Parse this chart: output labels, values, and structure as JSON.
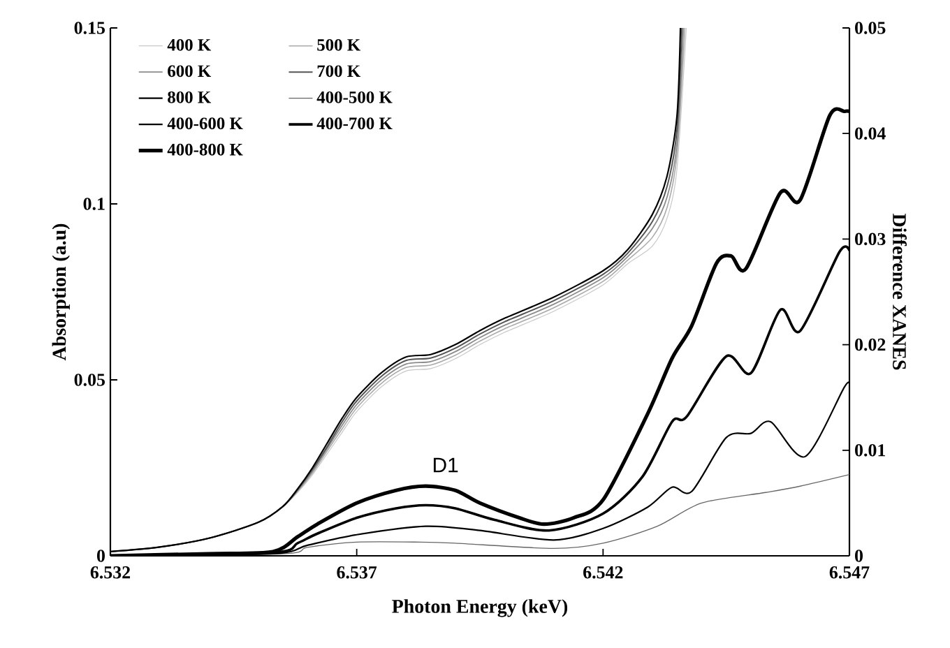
{
  "chart_data": {
    "type": "line",
    "xlabel": "Photon Energy (keV)",
    "ylabel": "Absorption (a.u)",
    "y2label": "Difference XANES",
    "xlim": [
      6.532,
      6.547
    ],
    "xticks": [
      6.532,
      6.537,
      6.542,
      6.547
    ],
    "ylim": [
      0,
      0.15
    ],
    "yticks": [
      0,
      0.05,
      0.1,
      0.15
    ],
    "y2lim": [
      0,
      0.05
    ],
    "y2ticks": [
      0,
      0.01,
      0.02,
      0.03,
      0.04,
      0.05
    ],
    "legend": "top left",
    "annotations": [
      {
        "text": "D1",
        "x": 6.5388,
        "y": 0.0086
      }
    ],
    "series": [
      {
        "name": "400 K",
        "color": "#c8c8c8",
        "x": [
          6.532,
          6.533,
          6.534,
          6.535,
          6.5355,
          6.5358,
          6.5361,
          6.5364,
          6.5367,
          6.537,
          6.5375,
          6.538,
          6.5385,
          6.539,
          6.5395,
          6.54,
          6.541,
          6.542,
          6.5425,
          6.543,
          6.5433,
          6.5435,
          6.54369
        ],
        "values": [
          0.0012,
          0.0025,
          0.005,
          0.0095,
          0.014,
          0.018,
          0.023,
          0.029,
          0.035,
          0.041,
          0.048,
          0.0525,
          0.0532,
          0.056,
          0.06,
          0.0635,
          0.0695,
          0.077,
          0.083,
          0.088,
          0.096,
          0.11,
          0.15
        ]
      },
      {
        "name": "500 K",
        "color": "#aaaaaa",
        "x": [
          6.532,
          6.533,
          6.534,
          6.535,
          6.5355,
          6.5358,
          6.5361,
          6.5364,
          6.5367,
          6.537,
          6.5375,
          6.538,
          6.5385,
          6.539,
          6.5395,
          6.54,
          6.541,
          6.542,
          6.5425,
          6.543,
          6.5433,
          6.5435,
          6.54366
        ],
        "values": [
          0.0012,
          0.0025,
          0.005,
          0.0095,
          0.014,
          0.0183,
          0.0235,
          0.0298,
          0.036,
          0.042,
          0.049,
          0.0535,
          0.0542,
          0.057,
          0.061,
          0.0645,
          0.0705,
          0.078,
          0.084,
          0.0905,
          0.099,
          0.114,
          0.15
        ]
      },
      {
        "name": "600 K",
        "color": "#8c8c8c",
        "x": [
          6.532,
          6.533,
          6.534,
          6.535,
          6.5355,
          6.5358,
          6.5361,
          6.5364,
          6.5367,
          6.537,
          6.5375,
          6.538,
          6.5385,
          6.539,
          6.5395,
          6.54,
          6.541,
          6.542,
          6.5425,
          6.543,
          6.5433,
          6.5435,
          6.54363
        ],
        "values": [
          0.0012,
          0.0025,
          0.005,
          0.0095,
          0.014,
          0.0185,
          0.024,
          0.0305,
          0.037,
          0.043,
          0.05,
          0.0545,
          0.0552,
          0.058,
          0.062,
          0.0655,
          0.0715,
          0.079,
          0.085,
          0.093,
          0.102,
          0.117,
          0.15
        ]
      },
      {
        "name": "700 K",
        "color": "#555555",
        "x": [
          6.532,
          6.533,
          6.534,
          6.535,
          6.5355,
          6.5358,
          6.5361,
          6.5364,
          6.5367,
          6.537,
          6.5375,
          6.538,
          6.5385,
          6.539,
          6.5395,
          6.54,
          6.541,
          6.542,
          6.5425,
          6.543,
          6.5433,
          6.5435,
          6.5436
        ],
        "values": [
          0.0012,
          0.0025,
          0.005,
          0.0095,
          0.014,
          0.0188,
          0.0245,
          0.031,
          0.038,
          0.044,
          0.051,
          0.0555,
          0.0562,
          0.059,
          0.063,
          0.0665,
          0.0725,
          0.08,
          0.086,
          0.095,
          0.105,
          0.121,
          0.15
        ]
      },
      {
        "name": "800 K",
        "color": "#000000",
        "x": [
          6.532,
          6.533,
          6.534,
          6.535,
          6.5355,
          6.5358,
          6.5361,
          6.5364,
          6.5367,
          6.537,
          6.5375,
          6.538,
          6.5385,
          6.539,
          6.5395,
          6.54,
          6.541,
          6.542,
          6.5425,
          6.543,
          6.5433,
          6.5435,
          6.54357
        ],
        "values": [
          0.0012,
          0.0025,
          0.005,
          0.0095,
          0.014,
          0.019,
          0.025,
          0.032,
          0.039,
          0.045,
          0.052,
          0.0565,
          0.0572,
          0.06,
          0.064,
          0.0675,
          0.0735,
          0.081,
          0.087,
          0.097,
          0.108,
          0.125,
          0.15
        ]
      },
      {
        "name": "400-500 K",
        "color": "#666666",
        "axis": "y2",
        "x": [
          6.532,
          6.5355,
          6.536,
          6.537,
          6.5383,
          6.539,
          6.541,
          6.542,
          6.5431,
          6.544,
          6.5453,
          6.546,
          6.547
        ],
        "values": [
          0,
          0.0002,
          0.0008,
          0.0013,
          0.0013,
          0.0012,
          0.0007,
          0.0012,
          0.0028,
          0.005,
          0.006,
          0.0066,
          0.0077
        ]
      },
      {
        "name": "400-600 K",
        "color": "#000000",
        "axis": "y2",
        "x": [
          6.532,
          6.5353,
          6.536,
          6.537,
          6.5384,
          6.5395,
          6.541,
          6.542,
          6.5429,
          6.5434,
          6.5438,
          6.5445,
          6.545,
          6.5454,
          6.5461,
          6.5469,
          6.547
        ],
        "values": [
          0,
          0.0002,
          0.001,
          0.002,
          0.0028,
          0.0024,
          0.0015,
          0.0026,
          0.0046,
          0.0065,
          0.0061,
          0.0112,
          0.0116,
          0.0127,
          0.0094,
          0.016,
          0.0161
        ]
      },
      {
        "name": "400-700 K",
        "color": "#000000",
        "axis": "y2",
        "x": [
          6.532,
          6.5353,
          6.5358,
          6.5362,
          6.537,
          6.5378,
          6.5384,
          6.539,
          6.5398,
          6.5409,
          6.542,
          6.5428,
          6.5434,
          6.5437,
          6.5445,
          6.545,
          6.5456,
          6.546,
          6.5468,
          6.547
        ],
        "values": [
          0,
          0.0003,
          0.0012,
          0.0021,
          0.0036,
          0.0045,
          0.0048,
          0.0045,
          0.0034,
          0.0024,
          0.004,
          0.0075,
          0.0127,
          0.0132,
          0.0189,
          0.0173,
          0.0233,
          0.0213,
          0.0288,
          0.0289
        ]
      },
      {
        "name": "400-800 K",
        "color": "#000000",
        "axis": "y2",
        "x": [
          6.532,
          6.534,
          6.5353,
          6.5358,
          6.5362,
          6.537,
          6.5378,
          6.5384,
          6.539,
          6.5395,
          6.5403,
          6.5408,
          6.5414,
          6.542,
          6.5429,
          6.5434,
          6.5438,
          6.5443,
          6.5446,
          6.5449,
          6.5456,
          6.546,
          6.5466,
          6.5469,
          6.547
        ],
        "values": [
          0,
          0.0002,
          0.0004,
          0.0018,
          0.003,
          0.005,
          0.0062,
          0.0066,
          0.0062,
          0.005,
          0.0036,
          0.003,
          0.0036,
          0.0053,
          0.0134,
          0.0187,
          0.0218,
          0.0277,
          0.0284,
          0.0272,
          0.0344,
          0.0337,
          0.0417,
          0.0421,
          0.0421
        ]
      }
    ]
  }
}
